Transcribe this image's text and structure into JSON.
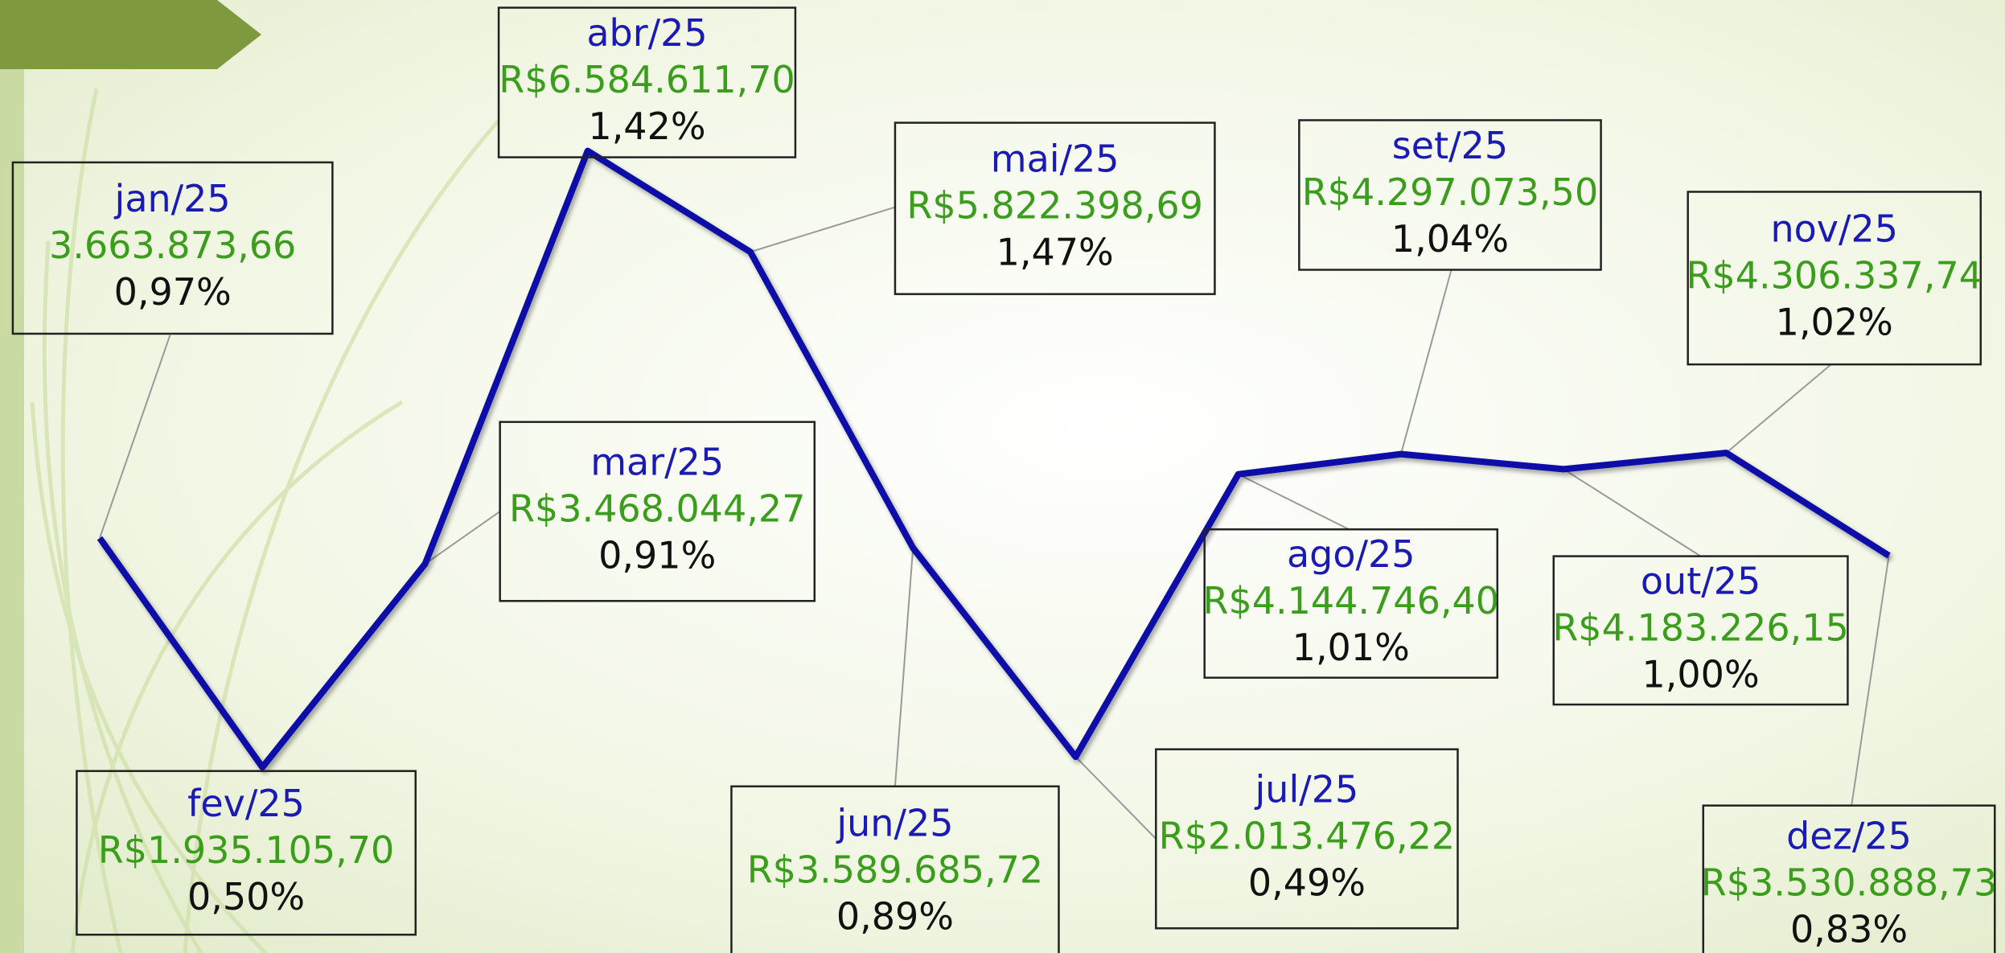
{
  "chart_data": {
    "type": "line",
    "categories": [
      "jan/25",
      "fev/25",
      "mar/25",
      "abr/25",
      "mai/25",
      "jun/25",
      "jul/25",
      "ago/25",
      "set/25",
      "out/25",
      "nov/25",
      "dez/25"
    ],
    "values": [
      3663873.66,
      1935105.7,
      3468044.27,
      6584611.7,
      5822398.69,
      3589685.72,
      2013476.22,
      4144746.4,
      4297073.5,
      4183226.15,
      4306337.74,
      3530888.73
    ],
    "value_labels": [
      "3.663.873,66",
      "R$1.935.105,70",
      "R$3.468.044,27",
      "R$6.584.611,70",
      "R$5.822.398,69",
      "R$3.589.685,72",
      "R$2.013.476,22",
      "R$4.144.746,40",
      "R$4.297.073,50",
      "R$4.183.226,15",
      "R$4.306.337,74",
      "R$3.530.888,73"
    ],
    "share_values": [
      0.97,
      0.5,
      0.91,
      1.42,
      1.47,
      0.89,
      0.49,
      1.01,
      1.04,
      1.0,
      1.02,
      0.83
    ],
    "share_labels": [
      "0,97%",
      "0,50%",
      "0,91%",
      "1,42%",
      "1,47%",
      "0,89%",
      "0,49%",
      "1,01%",
      "1,04%",
      "1,00%",
      "1,02%",
      "0,83%"
    ],
    "color": "#0a0aa8"
  }
}
